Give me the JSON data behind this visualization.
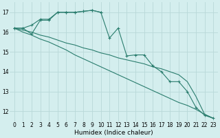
{
  "x": [
    0,
    1,
    2,
    3,
    4,
    5,
    6,
    7,
    8,
    9,
    10,
    11,
    12,
    13,
    14,
    15,
    16,
    17,
    18,
    19,
    20,
    21,
    22,
    23
  ],
  "line_jagged": [
    16.2,
    16.2,
    15.9,
    16.6,
    16.6,
    17.0,
    17.0,
    17.0,
    17.05,
    17.1,
    17.0,
    15.7,
    16.2,
    14.8,
    14.85,
    14.85,
    14.3,
    14.0,
    13.5,
    13.5,
    13.0,
    12.2,
    11.8,
    11.65
  ],
  "line_peak": [
    16.2,
    16.2,
    16.35,
    16.65,
    16.65,
    17.0,
    17.0,
    17.0,
    17.05,
    17.1,
    17.0,
    null,
    null,
    null,
    null,
    null,
    null,
    null,
    null,
    null,
    null,
    null,
    null,
    null
  ],
  "line_straight1": [
    16.2,
    16.0,
    15.85,
    15.65,
    15.5,
    15.3,
    15.1,
    14.85,
    14.65,
    14.45,
    14.25,
    14.05,
    13.85,
    13.65,
    13.45,
    13.25,
    13.05,
    12.85,
    12.65,
    12.45,
    12.3,
    12.1,
    11.85,
    11.65
  ],
  "line_straight2": [
    16.2,
    16.1,
    16.0,
    15.85,
    15.75,
    15.6,
    15.45,
    15.35,
    15.2,
    15.1,
    14.95,
    14.85,
    14.7,
    14.6,
    14.5,
    14.4,
    14.25,
    14.15,
    14.0,
    13.85,
    13.5,
    12.75,
    11.85,
    11.65
  ],
  "line_color": "#2a7d6e",
  "bg_color": "#d4eeee",
  "grid_color": "#b8d8d8",
  "xlabel": "Humidex (Indice chaleur)",
  "xlim_min": -0.5,
  "xlim_max": 23.5,
  "ylim_min": 11.5,
  "ylim_max": 17.5,
  "yticks": [
    12,
    13,
    14,
    15,
    16,
    17
  ],
  "xticks": [
    0,
    1,
    2,
    3,
    4,
    5,
    6,
    7,
    8,
    9,
    10,
    11,
    12,
    13,
    14,
    15,
    16,
    17,
    18,
    19,
    20,
    21,
    22,
    23
  ],
  "tick_fontsize": 5.5,
  "xlabel_fontsize": 6.5
}
